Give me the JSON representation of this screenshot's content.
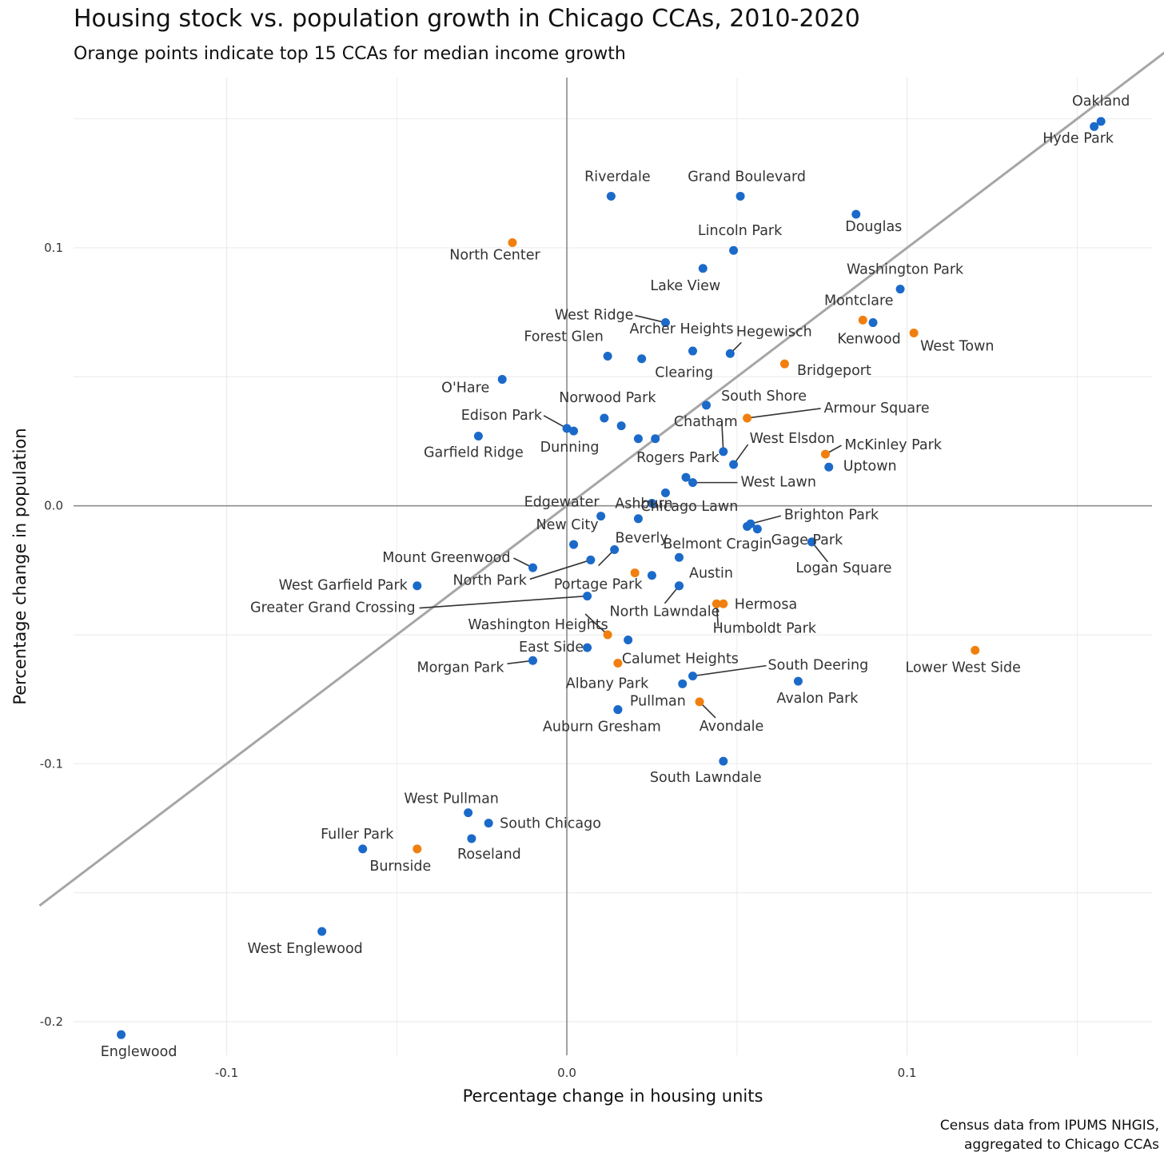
{
  "chart_data": {
    "type": "scatter",
    "title": "Housing stock vs. population growth in Chicago CCAs, 2010-2020",
    "subtitle": "Orange points indicate top 15 CCAs for median income growth",
    "xlabel": "Percentage change in housing units",
    "ylabel": "Percentage change in population",
    "caption": [
      "Census data from IPUMS NHGIS,",
      "aggregated to Chicago CCAs"
    ],
    "xlim": [
      -0.145,
      0.172
    ],
    "ylim": [
      -0.213,
      0.166
    ],
    "xticks": [
      -0.1,
      0.0,
      0.1
    ],
    "xtick_labels": [
      "-0.1",
      "0.0",
      "0.1"
    ],
    "yticks": [
      -0.2,
      -0.1,
      0.0,
      0.1
    ],
    "ytick_labels": [
      "-0.2",
      "-0.1",
      "0.0",
      "0.1"
    ],
    "grid": true,
    "reference_line": "y = x",
    "colors": {
      "default": "#1B6AC9",
      "top15_income_growth": "#F07F0F",
      "ref_line": "#A6A6A6",
      "zero_axis": "#8C8C8C",
      "grid": "#EBEBEB"
    },
    "points": [
      {
        "name": "Oakland",
        "x": 0.157,
        "y": 0.149,
        "top15": false
      },
      {
        "name": "Hyde Park",
        "x": 0.155,
        "y": 0.147,
        "top15": false
      },
      {
        "name": "Riverdale",
        "x": 0.013,
        "y": 0.12,
        "top15": false
      },
      {
        "name": "Grand Boulevard",
        "x": 0.051,
        "y": 0.12,
        "top15": false
      },
      {
        "name": "Douglas",
        "x": 0.085,
        "y": 0.113,
        "top15": false
      },
      {
        "name": "North Center",
        "x": -0.016,
        "y": 0.102,
        "top15": true
      },
      {
        "name": "Lincoln Park",
        "x": 0.049,
        "y": 0.099,
        "top15": false
      },
      {
        "name": "Lake View",
        "x": 0.04,
        "y": 0.092,
        "top15": false
      },
      {
        "name": "Washington Park",
        "x": 0.098,
        "y": 0.084,
        "top15": false
      },
      {
        "name": "West Ridge",
        "x": 0.029,
        "y": 0.071,
        "top15": false
      },
      {
        "name": "Montclare",
        "x": 0.087,
        "y": 0.072,
        "top15": true
      },
      {
        "name": "Kenwood",
        "x": 0.09,
        "y": 0.071,
        "top15": false
      },
      {
        "name": "West Town",
        "x": 0.102,
        "y": 0.067,
        "top15": true
      },
      {
        "name": "Forest Glen",
        "x": 0.012,
        "y": 0.058,
        "top15": false
      },
      {
        "name": "Archer Heights",
        "x": 0.037,
        "y": 0.06,
        "top15": false
      },
      {
        "name": "Clearing",
        "x": 0.022,
        "y": 0.057,
        "top15": false
      },
      {
        "name": "Hegewisch",
        "x": 0.048,
        "y": 0.059,
        "top15": false
      },
      {
        "name": "Bridgeport",
        "x": 0.064,
        "y": 0.055,
        "top15": true
      },
      {
        "name": "O'Hare",
        "x": -0.019,
        "y": 0.049,
        "top15": false
      },
      {
        "name": "South Shore",
        "x": 0.041,
        "y": 0.039,
        "top15": false
      },
      {
        "name": "Armour Square",
        "x": 0.053,
        "y": 0.034,
        "top15": true
      },
      {
        "name": "Norwood Park",
        "x": 0.011,
        "y": 0.034,
        "top15": false
      },
      {
        "name": "Edison Park",
        "x": 0.0,
        "y": 0.03,
        "top15": false
      },
      {
        "name": "Dunning",
        "x": 0.002,
        "y": 0.029,
        "top15": false
      },
      {
        "name": "Unlabeled 1",
        "x": 0.016,
        "y": 0.031,
        "top15": false
      },
      {
        "name": "Unlabeled 2",
        "x": 0.021,
        "y": 0.026,
        "top15": false
      },
      {
        "name": "Unlabeled 3",
        "x": 0.026,
        "y": 0.026,
        "top15": false
      },
      {
        "name": "Garfield Ridge",
        "x": -0.026,
        "y": 0.027,
        "top15": false
      },
      {
        "name": "Chatham",
        "x": 0.046,
        "y": 0.021,
        "top15": false
      },
      {
        "name": "West Elsdon",
        "x": 0.049,
        "y": 0.016,
        "top15": false
      },
      {
        "name": "McKinley Park",
        "x": 0.076,
        "y": 0.02,
        "top15": true
      },
      {
        "name": "Uptown",
        "x": 0.077,
        "y": 0.015,
        "top15": false
      },
      {
        "name": "Rogers Park",
        "x": 0.035,
        "y": 0.011,
        "top15": false
      },
      {
        "name": "West Lawn",
        "x": 0.037,
        "y": 0.009,
        "top15": false
      },
      {
        "name": "Unlabeled 4",
        "x": 0.029,
        "y": 0.005,
        "top15": false
      },
      {
        "name": "Ashburn",
        "x": 0.025,
        "y": 0.001,
        "top15": false
      },
      {
        "name": "Edgewater",
        "x": 0.01,
        "y": -0.004,
        "top15": false
      },
      {
        "name": "Chicago Lawn",
        "x": 0.021,
        "y": -0.005,
        "top15": false
      },
      {
        "name": "Brighton Park",
        "x": 0.054,
        "y": -0.007,
        "top15": false
      },
      {
        "name": "Unlabeled 5",
        "x": 0.053,
        "y": -0.008,
        "top15": false
      },
      {
        "name": "Unlabeled 6",
        "x": 0.056,
        "y": -0.009,
        "top15": false
      },
      {
        "name": "New City",
        "x": 0.002,
        "y": -0.015,
        "top15": false
      },
      {
        "name": "Beverly",
        "x": 0.014,
        "y": -0.017,
        "top15": false
      },
      {
        "name": "Gage Park",
        "x": 0.072,
        "y": -0.014,
        "top15": true
      },
      {
        "name": "Logan Square",
        "x": 0.072,
        "y": -0.014,
        "top15": false
      },
      {
        "name": "Belmont Cragin",
        "x": 0.033,
        "y": -0.02,
        "top15": false
      },
      {
        "name": "North Park",
        "x": 0.007,
        "y": -0.021,
        "top15": false
      },
      {
        "name": "Mount Greenwood",
        "x": -0.01,
        "y": -0.024,
        "top15": false
      },
      {
        "name": "Portage Park",
        "x": 0.02,
        "y": -0.026,
        "top15": true
      },
      {
        "name": "Unlabeled 7",
        "x": 0.025,
        "y": -0.027,
        "top15": false
      },
      {
        "name": "Austin",
        "x": 0.033,
        "y": -0.031,
        "top15": false
      },
      {
        "name": "West Garfield Park",
        "x": -0.044,
        "y": -0.031,
        "top15": false
      },
      {
        "name": "Greater Grand Crossing",
        "x": 0.006,
        "y": -0.035,
        "top15": false
      },
      {
        "name": "Washington Heights",
        "x": 0.012,
        "y": -0.05,
        "top15": true
      },
      {
        "name": "Hermosa",
        "x": 0.046,
        "y": -0.038,
        "top15": true
      },
      {
        "name": "Humboldt Park",
        "x": 0.044,
        "y": -0.038,
        "top15": true
      },
      {
        "name": "North Lawndale",
        "x": 0.033,
        "y": -0.031,
        "top15": false
      },
      {
        "name": "Unlabeled 8",
        "x": 0.018,
        "y": -0.052,
        "top15": false
      },
      {
        "name": "East Side",
        "x": 0.006,
        "y": -0.055,
        "top15": false
      },
      {
        "name": "Lower West Side",
        "x": 0.12,
        "y": -0.056,
        "top15": true
      },
      {
        "name": "Calumet Heights",
        "x": 0.015,
        "y": -0.061,
        "top15": true
      },
      {
        "name": "Morgan Park",
        "x": -0.01,
        "y": -0.06,
        "top15": false
      },
      {
        "name": "South Deering",
        "x": 0.037,
        "y": -0.066,
        "top15": false
      },
      {
        "name": "Albany Park",
        "x": 0.034,
        "y": -0.069,
        "top15": false
      },
      {
        "name": "Avalon Park",
        "x": 0.068,
        "y": -0.068,
        "top15": false
      },
      {
        "name": "Pullman",
        "x": 0.015,
        "y": -0.079,
        "top15": false
      },
      {
        "name": "Avondale",
        "x": 0.039,
        "y": -0.076,
        "top15": true
      },
      {
        "name": "Auburn Gresham",
        "x": 0.015,
        "y": -0.079,
        "top15": false
      },
      {
        "name": "South Lawndale",
        "x": 0.046,
        "y": -0.099,
        "top15": false
      },
      {
        "name": "West Pullman",
        "x": -0.029,
        "y": -0.119,
        "top15": false
      },
      {
        "name": "South Chicago",
        "x": -0.023,
        "y": -0.123,
        "top15": false
      },
      {
        "name": "Roseland",
        "x": -0.028,
        "y": -0.129,
        "top15": false
      },
      {
        "name": "Fuller Park",
        "x": -0.06,
        "y": -0.133,
        "top15": false
      },
      {
        "name": "Burnside",
        "x": -0.044,
        "y": -0.133,
        "top15": true
      },
      {
        "name": "West Englewood",
        "x": -0.072,
        "y": -0.165,
        "top15": false
      },
      {
        "name": "Englewood",
        "x": -0.131,
        "y": -0.205,
        "top15": false
      }
    ]
  }
}
